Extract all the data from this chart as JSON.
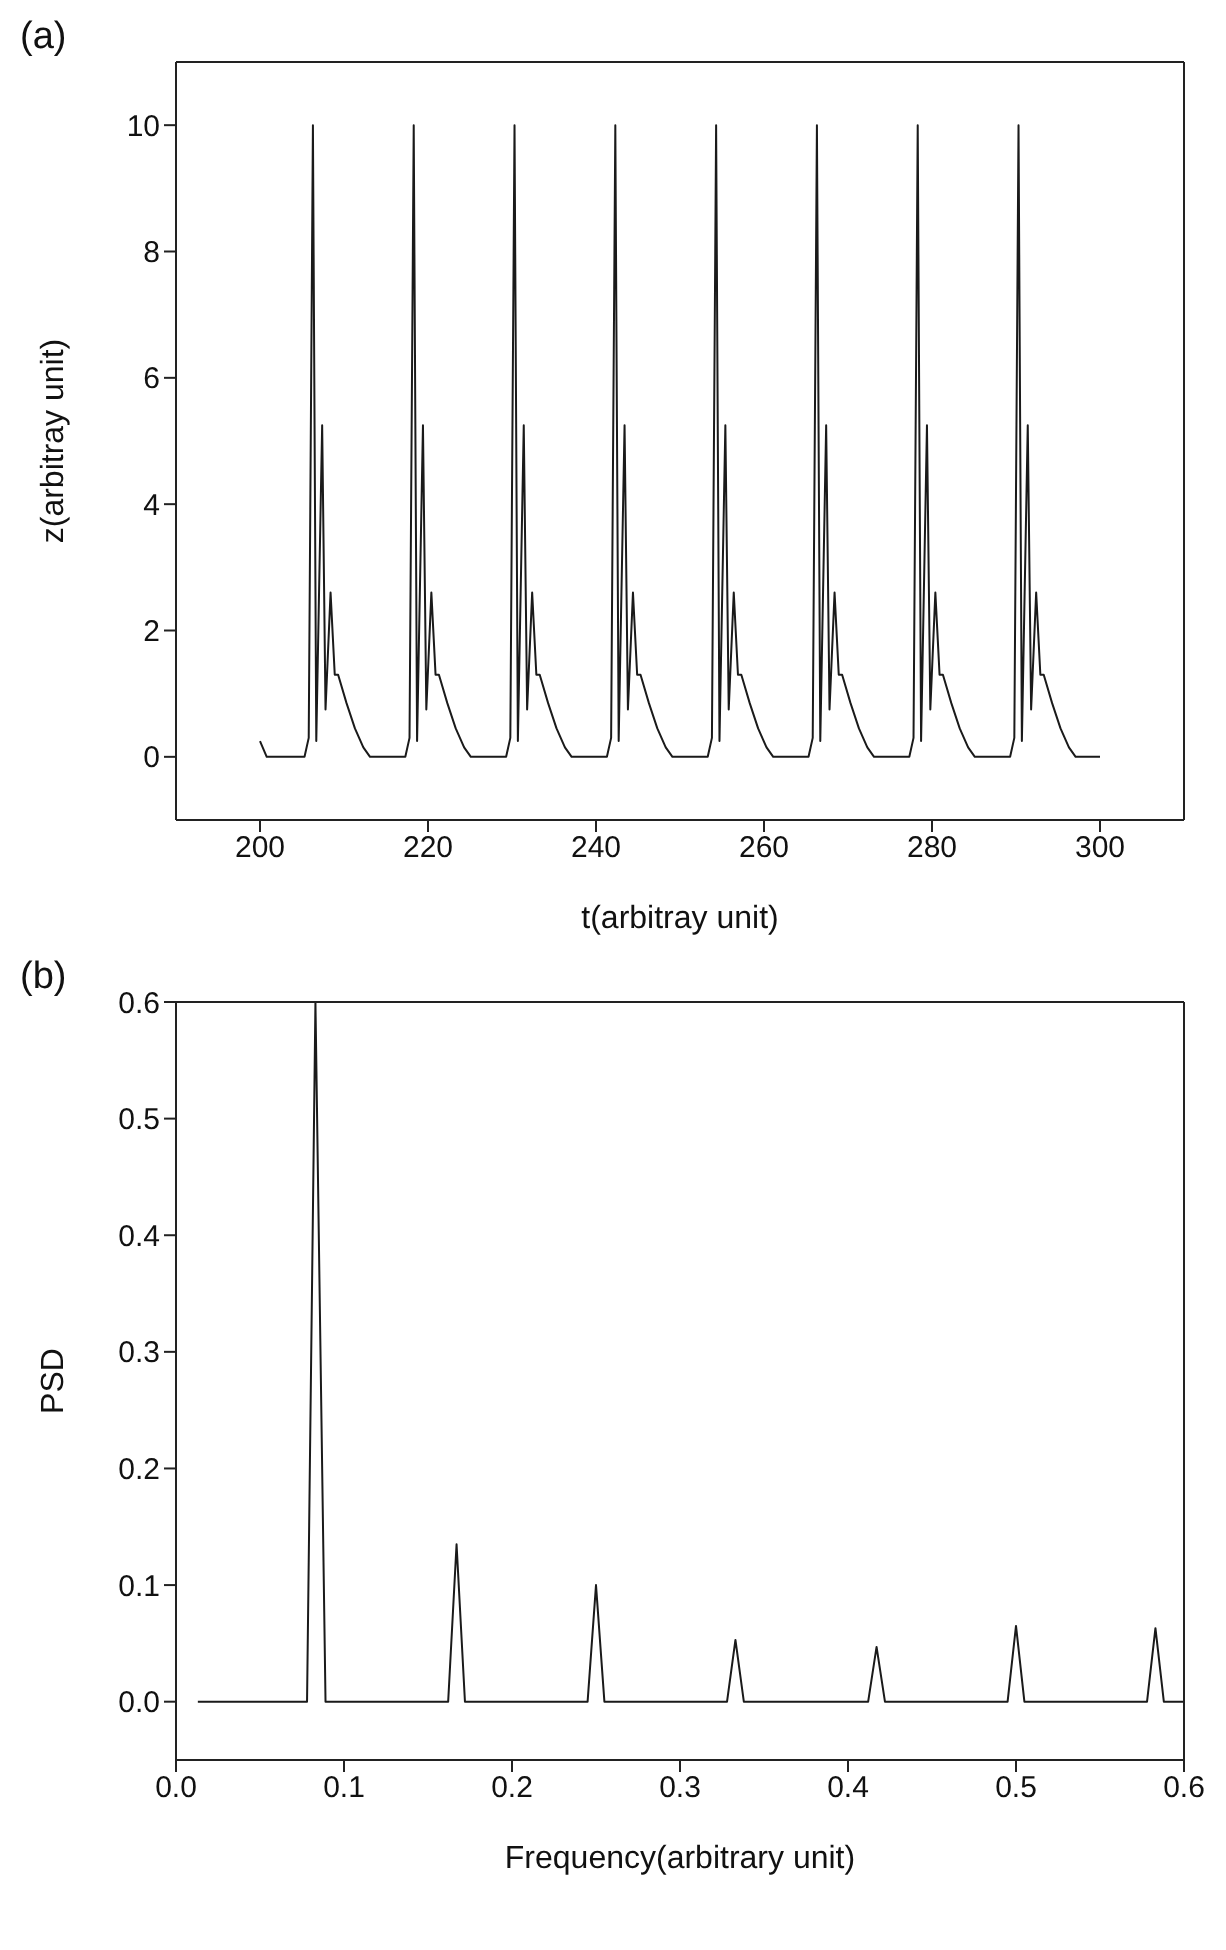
{
  "chart_data": [
    {
      "type": "line",
      "title": "(a)",
      "xlabel": "t(arbitray unit)",
      "ylabel": "z(arbitray unit)",
      "xlim": [
        190,
        310
      ],
      "ylim": [
        -1,
        11
      ],
      "xticks": [
        200,
        220,
        240,
        260,
        280,
        300
      ],
      "yticks": [
        0,
        2,
        4,
        6,
        8,
        10
      ],
      "series": [
        {
          "color": "#1a1a1a",
          "x": [
            200,
            200.8,
            205.3,
            205.8,
            206.3,
            206.7,
            207.4,
            207.8,
            208.4,
            208.9,
            209.3,
            210.3,
            211.3,
            212.3,
            213.1,
            217.3,
            217.8,
            218.3,
            218.7,
            219.4,
            219.8,
            220.4,
            220.9,
            221.3,
            222.3,
            223.3,
            224.3,
            225.1,
            229.3,
            229.8,
            230.3,
            230.7,
            231.4,
            231.8,
            232.4,
            232.9,
            233.3,
            234.3,
            235.3,
            236.3,
            237.1,
            241.3,
            241.8,
            242.3,
            242.7,
            243.4,
            243.8,
            244.4,
            244.9,
            245.3,
            246.3,
            247.3,
            248.3,
            249.1,
            253.3,
            253.8,
            254.3,
            254.7,
            255.4,
            255.8,
            256.4,
            256.9,
            257.3,
            258.3,
            259.3,
            260.3,
            261.1,
            265.3,
            265.8,
            266.3,
            266.7,
            267.4,
            267.8,
            268.4,
            268.9,
            269.3,
            270.3,
            271.3,
            272.3,
            273.1,
            277.3,
            277.8,
            278.3,
            278.7,
            279.4,
            279.8,
            280.4,
            280.9,
            281.3,
            282.3,
            283.3,
            284.3,
            285.1,
            289.3,
            289.8,
            290.3,
            290.7,
            291.4,
            291.8,
            292.4,
            292.9,
            293.3,
            294.3,
            295.3,
            296.3,
            297.1,
            300
          ],
          "values": [
            0.25,
            0,
            0,
            0.3,
            10,
            0.25,
            5.25,
            0.75,
            2.6,
            1.3,
            1.3,
            0.85,
            0.45,
            0.15,
            0,
            0,
            0.3,
            10,
            0.25,
            5.25,
            0.75,
            2.6,
            1.3,
            1.3,
            0.85,
            0.45,
            0.15,
            0,
            0,
            0.3,
            10,
            0.25,
            5.25,
            0.75,
            2.6,
            1.3,
            1.3,
            0.85,
            0.45,
            0.15,
            0,
            0,
            0.3,
            10,
            0.25,
            5.25,
            0.75,
            2.6,
            1.3,
            1.3,
            0.85,
            0.45,
            0.15,
            0,
            0,
            0.3,
            10,
            0.25,
            5.25,
            0.75,
            2.6,
            1.3,
            1.3,
            0.85,
            0.45,
            0.15,
            0,
            0,
            0.3,
            10,
            0.25,
            5.25,
            0.75,
            2.6,
            1.3,
            1.3,
            0.85,
            0.45,
            0.15,
            0,
            0,
            0.3,
            10,
            0.25,
            5.25,
            0.75,
            2.6,
            1.3,
            1.3,
            0.85,
            0.45,
            0.15,
            0,
            0,
            0.3,
            10,
            0.25,
            5.25,
            0.75,
            2.6,
            1.3,
            1.3,
            0.85,
            0.45,
            0.15,
            0,
            0
          ]
        }
      ]
    },
    {
      "type": "line",
      "title": "(b)",
      "xlabel": "Frequency(arbitrary unit)",
      "ylabel": "PSD",
      "xlim": [
        0,
        0.6
      ],
      "ylim": [
        -0.05,
        0.6
      ],
      "xticks": [
        {
          "value": 0,
          "label": "0.0"
        },
        0.1,
        0.2,
        0.3,
        0.4,
        0.5,
        0.6
      ],
      "yticks": [
        {
          "value": 0,
          "label": "0.0"
        },
        0.1,
        0.2,
        0.3,
        0.4,
        0.5,
        0.6
      ],
      "series": [
        {
          "color": "#1a1a1a",
          "x": [
            0.013,
            0.078,
            0.083,
            0.089,
            0.162,
            0.167,
            0.172,
            0.245,
            0.25,
            0.255,
            0.328,
            0.333,
            0.338,
            0.412,
            0.417,
            0.422,
            0.495,
            0.5,
            0.505,
            0.578,
            0.583,
            0.588,
            0.6
          ],
          "values": [
            0,
            0,
            0.6,
            0,
            0,
            0.135,
            0,
            0,
            0.1,
            0,
            0,
            0.053,
            0,
            0,
            0.047,
            0,
            0,
            0.065,
            0,
            0,
            0.063,
            0,
            0
          ]
        }
      ]
    }
  ]
}
